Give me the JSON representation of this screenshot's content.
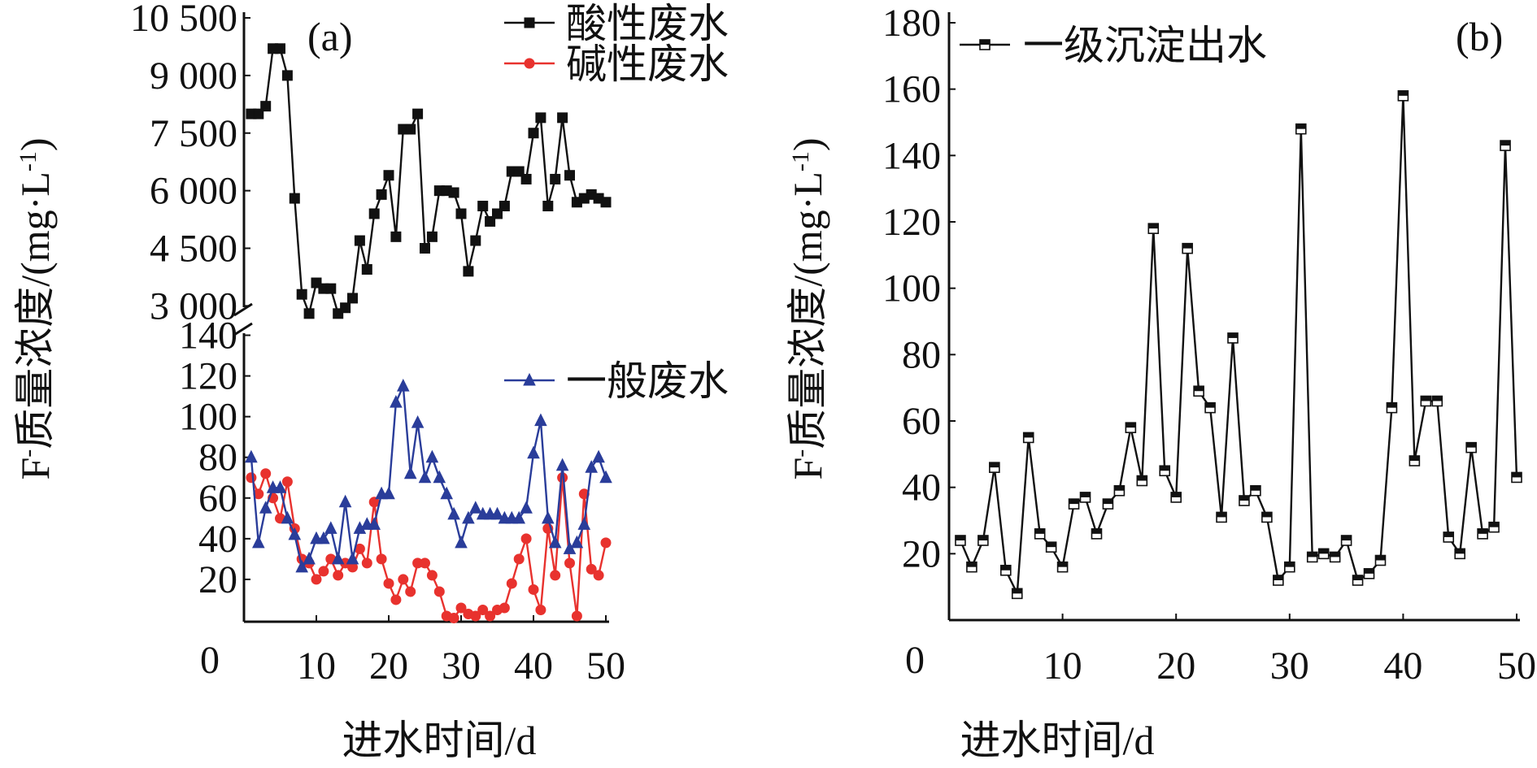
{
  "chart_data": [
    {
      "panel": "(a)",
      "type": "line",
      "xlabel": "进水时间/d",
      "ylabel": "F-质量浓度/(mg·L-1)",
      "ylabel_parts": {
        "main": "F",
        "sup1": "-",
        "mid": "质量浓度/(mg·L",
        "sup2": "-1",
        "tail": ")"
      },
      "x_ticks": [
        "10",
        "20",
        "30",
        "40",
        "50"
      ],
      "x_origin_label": "0",
      "xlim": [
        0,
        50
      ],
      "upper_axis": {
        "ylim": [
          2500,
          10500
        ],
        "ticks": [
          "10 500",
          "9 000",
          "7 500",
          "6 000",
          "4 500",
          "3 000"
        ],
        "tick_values": [
          10500,
          9000,
          7500,
          6000,
          4500,
          3000
        ]
      },
      "lower_axis": {
        "ylim": [
          0,
          145
        ],
        "ticks": [
          "140",
          "120",
          "100",
          "80",
          "60",
          "40",
          "20"
        ],
        "tick_values": [
          140,
          120,
          100,
          80,
          60,
          40,
          20
        ]
      },
      "axis_break": true,
      "series": [
        {
          "name": "酸性废水",
          "axis": "upper",
          "color": "#111111",
          "marker": "square",
          "x": [
            1,
            2,
            3,
            4,
            5,
            6,
            7,
            8,
            9,
            10,
            11,
            12,
            13,
            14,
            15,
            16,
            17,
            18,
            19,
            20,
            21,
            22,
            23,
            24,
            25,
            26,
            27,
            28,
            29,
            30,
            31,
            32,
            33,
            34,
            35,
            36,
            37,
            38,
            39,
            40,
            41,
            42,
            43,
            44,
            45,
            46,
            47,
            48,
            49,
            50
          ],
          "values": [
            8000,
            8000,
            8200,
            9700,
            9700,
            9000,
            5800,
            3300,
            2800,
            3600,
            3450,
            3450,
            2800,
            2950,
            3200,
            4700,
            3950,
            5400,
            5900,
            6400,
            4800,
            7600,
            7600,
            8000,
            4500,
            4800,
            6000,
            6000,
            5950,
            5400,
            3900,
            4700,
            5600,
            5200,
            5400,
            5600,
            6500,
            6500,
            6300,
            7500,
            7900,
            5600,
            6300,
            7900,
            6400,
            5700,
            5800,
            5900,
            5800,
            5700
          ]
        },
        {
          "name": "碱性废水",
          "axis": "lower",
          "color": "#e8322e",
          "marker": "circle",
          "x": [
            1,
            2,
            3,
            4,
            5,
            6,
            7,
            8,
            9,
            10,
            11,
            12,
            13,
            14,
            15,
            16,
            17,
            18,
            19,
            20,
            21,
            22,
            23,
            24,
            25,
            26,
            27,
            28,
            29,
            30,
            31,
            32,
            33,
            34,
            35,
            36,
            37,
            38,
            39,
            40,
            41,
            42,
            43,
            44,
            45,
            46,
            47,
            48,
            49,
            50
          ],
          "values": [
            70,
            62,
            72,
            60,
            50,
            68,
            45,
            30,
            28,
            20,
            24,
            30,
            22,
            28,
            26,
            35,
            28,
            58,
            30,
            18,
            10,
            20,
            14,
            28,
            28,
            22,
            14,
            2,
            1,
            6,
            3,
            2,
            5,
            2,
            5,
            6,
            18,
            30,
            40,
            15,
            5,
            45,
            22,
            70,
            28,
            2,
            62,
            25,
            22,
            38
          ]
        },
        {
          "name": "一般废水",
          "axis": "lower",
          "color": "#2a3d9a",
          "marker": "triangle",
          "x": [
            1,
            2,
            3,
            4,
            5,
            6,
            7,
            8,
            9,
            10,
            11,
            12,
            13,
            14,
            15,
            16,
            17,
            18,
            19,
            20,
            21,
            22,
            23,
            24,
            25,
            26,
            27,
            28,
            29,
            30,
            31,
            32,
            33,
            34,
            35,
            36,
            37,
            38,
            39,
            40,
            41,
            42,
            43,
            44,
            45,
            46,
            47,
            48,
            49,
            50
          ],
          "values": [
            80,
            38,
            55,
            65,
            65,
            50,
            42,
            26,
            30,
            40,
            40,
            45,
            30,
            58,
            30,
            45,
            47,
            47,
            62,
            62,
            107,
            115,
            72,
            97,
            70,
            80,
            70,
            62,
            52,
            38,
            50,
            55,
            52,
            52,
            52,
            50,
            50,
            50,
            55,
            82,
            98,
            50,
            38,
            76,
            35,
            38,
            47,
            75,
            80,
            70
          ]
        }
      ]
    },
    {
      "panel": "(b)",
      "type": "line",
      "xlabel": "进水时间/d",
      "ylabel": "F-质量浓度/(mg·L-1)",
      "ylabel_parts": {
        "main": "F",
        "sup1": "-",
        "mid": "质量浓度/(mg·L",
        "sup2": "-1",
        "tail": ")"
      },
      "x_ticks": [
        "10",
        "20",
        "30",
        "40",
        "50"
      ],
      "x_origin_label": "0",
      "xlim": [
        0,
        50
      ],
      "ylim": [
        0,
        180
      ],
      "y_ticks": [
        "180",
        "160",
        "140",
        "120",
        "100",
        "80",
        "60",
        "40",
        "20"
      ],
      "y_tick_values": [
        180,
        160,
        140,
        120,
        100,
        80,
        60,
        40,
        20
      ],
      "series": [
        {
          "name": "一级沉淀出水",
          "color": "#111111",
          "marker": "half-square",
          "x": [
            1,
            2,
            3,
            4,
            5,
            6,
            7,
            8,
            9,
            10,
            11,
            12,
            13,
            14,
            15,
            16,
            17,
            18,
            19,
            20,
            21,
            22,
            23,
            24,
            25,
            26,
            27,
            28,
            29,
            30,
            31,
            32,
            33,
            34,
            35,
            36,
            37,
            38,
            39,
            40,
            41,
            42,
            43,
            44,
            45,
            46,
            47,
            48,
            49,
            50
          ],
          "values": [
            24,
            16,
            24,
            46,
            15,
            8,
            55,
            26,
            22,
            16,
            35,
            37,
            26,
            35,
            39,
            58,
            42,
            118,
            45,
            37,
            112,
            69,
            64,
            31,
            85,
            36,
            39,
            31,
            12,
            16,
            148,
            19,
            20,
            19,
            24,
            12,
            14,
            18,
            64,
            158,
            48,
            66,
            66,
            25,
            20,
            52,
            26,
            28,
            143,
            43
          ]
        }
      ]
    }
  ]
}
